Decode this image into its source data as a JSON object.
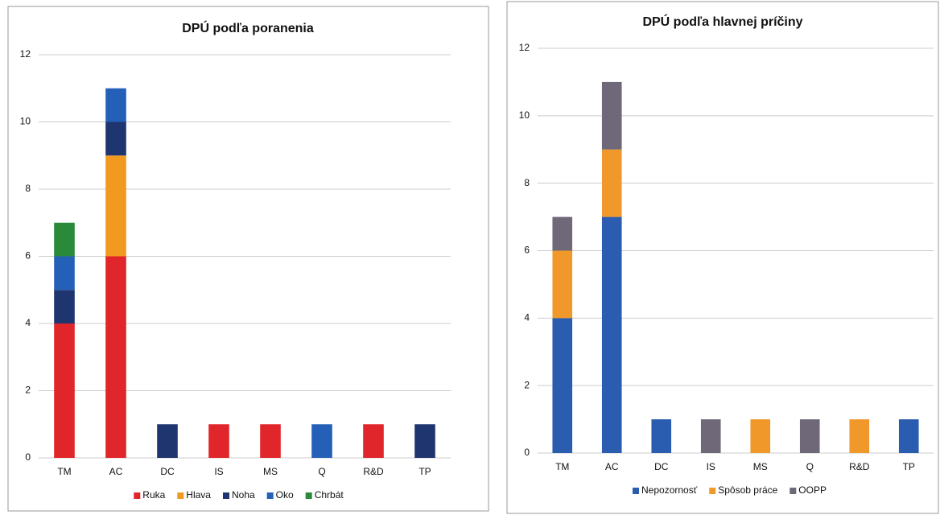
{
  "chart_data": [
    {
      "type": "stacked_bar",
      "title": "DPÚ podľa poranenia",
      "categories": [
        "TM",
        "AC",
        "DC",
        "IS",
        "MS",
        "Q",
        "R&D",
        "TP"
      ],
      "series": [
        {
          "name": "Ruka",
          "color": "#e0262a",
          "values": [
            4,
            6,
            0,
            1,
            1,
            0,
            1,
            0
          ]
        },
        {
          "name": "Hlava",
          "color": "#f29a1f",
          "values": [
            0,
            3,
            0,
            0,
            0,
            0,
            0,
            0
          ]
        },
        {
          "name": "Noha",
          "color": "#1f3570",
          "values": [
            1,
            1,
            1,
            0,
            0,
            0,
            0,
            1
          ]
        },
        {
          "name": "Oko",
          "color": "#2560b8",
          "values": [
            1,
            1,
            0,
            0,
            0,
            1,
            0,
            0
          ]
        },
        {
          "name": "Chrbát",
          "color": "#2a8a3a",
          "values": [
            1,
            0,
            0,
            0,
            0,
            0,
            0,
            0
          ]
        }
      ],
      "ylim": [
        0,
        12
      ],
      "yticks": [
        0,
        2,
        4,
        6,
        8,
        10,
        12
      ],
      "grid": true,
      "legend": "bottom"
    },
    {
      "type": "stacked_bar",
      "title": "DPÚ podľa hlavnej príčiny",
      "categories": [
        "TM",
        "AC",
        "DC",
        "IS",
        "MS",
        "Q",
        "R&D",
        "TP"
      ],
      "series": [
        {
          "name": "Nepozornosť",
          "color": "#2a5db0",
          "values": [
            4,
            7,
            1,
            0,
            0,
            0,
            0,
            1
          ]
        },
        {
          "name": "Spôsob práce",
          "color": "#f0982a",
          "values": [
            2,
            2,
            0,
            0,
            1,
            0,
            1,
            0
          ]
        },
        {
          "name": "OOPP",
          "color": "#6e6878",
          "values": [
            1,
            2,
            0,
            1,
            0,
            1,
            0,
            0
          ]
        }
      ],
      "ylim": [
        0,
        12
      ],
      "yticks": [
        0,
        2,
        4,
        6,
        8,
        10,
        12
      ],
      "grid": true,
      "legend": "bottom"
    }
  ]
}
